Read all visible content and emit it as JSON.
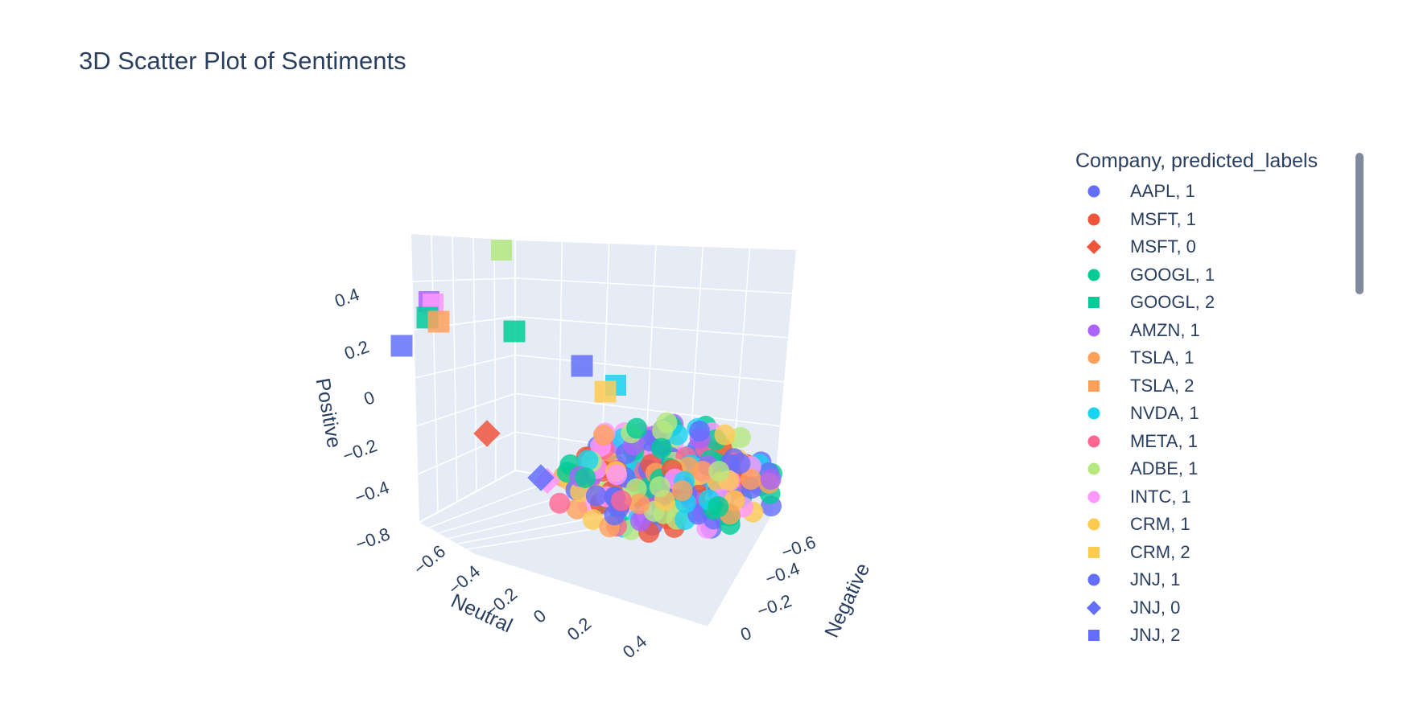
{
  "chart_data": {
    "type": "scatter",
    "subtype": "scatter3d",
    "title": "3D Scatter Plot of Sentiments",
    "axes": {
      "x": {
        "label": "Neutral",
        "ticks": [
          "-0.6",
          "-0.4",
          "-0.2",
          "0",
          "0.2",
          "0.4"
        ]
      },
      "y": {
        "label": "Negative",
        "ticks": [
          "0",
          "-0.2",
          "-0.4",
          "-0.6"
        ]
      },
      "z": {
        "label": "Positive",
        "ticks": [
          "-0.8",
          "-0.4",
          "-0.2",
          "0",
          "0.2",
          "0.4"
        ]
      }
    },
    "background_color": "#e5ecf6",
    "grid": true,
    "legend": {
      "title": "Company, predicted_labels",
      "placement": "right",
      "scrollable": true
    },
    "series": [
      {
        "name": "AAPL, 1",
        "symbol": "circle",
        "color": "#636efa"
      },
      {
        "name": "MSFT, 1",
        "symbol": "circle",
        "color": "#EF553B"
      },
      {
        "name": "MSFT, 0",
        "symbol": "diamond",
        "color": "#EF553B",
        "points": [
          {
            "x": -0.45,
            "y": -0.05,
            "z": -0.3
          }
        ]
      },
      {
        "name": "GOOGL, 1",
        "symbol": "circle",
        "color": "#00cc96"
      },
      {
        "name": "GOOGL, 2",
        "symbol": "square",
        "color": "#00cc96",
        "points": [
          {
            "x": -0.7,
            "y": -0.3,
            "z": 0.3
          },
          {
            "x": -0.35,
            "y": -0.45,
            "z": 0.3
          }
        ]
      },
      {
        "name": "AMZN, 1",
        "symbol": "circle",
        "color": "#ab63fa"
      },
      {
        "name": "TSLA, 1",
        "symbol": "circle",
        "color": "#FFA15A"
      },
      {
        "name": "TSLA, 2",
        "symbol": "square",
        "color": "#FFA15A",
        "points": [
          {
            "x": -0.65,
            "y": -0.3,
            "z": 0.3
          }
        ]
      },
      {
        "name": "NVDA, 1",
        "symbol": "circle",
        "color": "#19d3f3"
      },
      {
        "name": "META, 1",
        "symbol": "circle",
        "color": "#FF6692"
      },
      {
        "name": "ADBE, 1",
        "symbol": "circle",
        "color": "#B6E880"
      },
      {
        "name": "INTC, 1",
        "symbol": "circle",
        "color": "#FF97FF"
      },
      {
        "name": "CRM, 1",
        "symbol": "circle",
        "color": "#FECB52"
      },
      {
        "name": "CRM, 2",
        "symbol": "square",
        "color": "#FECB52",
        "points": [
          {
            "x": -0.1,
            "y": -0.55,
            "z": 0.25
          }
        ]
      },
      {
        "name": "JNJ, 1",
        "symbol": "circle",
        "color": "#636efa"
      },
      {
        "name": "JNJ, 0",
        "symbol": "diamond",
        "color": "#636efa",
        "points": [
          {
            "x": -0.25,
            "y": -0.1,
            "z": -0.3
          }
        ]
      },
      {
        "name": "JNJ, 2",
        "symbol": "square",
        "color": "#636efa",
        "points": [
          {
            "x": -0.75,
            "y": -0.2,
            "z": 0.2
          },
          {
            "x": -0.2,
            "y": -0.55,
            "z": 0.25
          }
        ]
      }
    ],
    "cluster_note_series": [
      "AAPL, 1",
      "MSFT, 1",
      "GOOGL, 1",
      "AMZN, 1",
      "TSLA, 1",
      "NVDA, 1",
      "META, 1",
      "ADBE, 1",
      "INTC, 1",
      "CRM, 1",
      "JNJ, 1"
    ]
  }
}
